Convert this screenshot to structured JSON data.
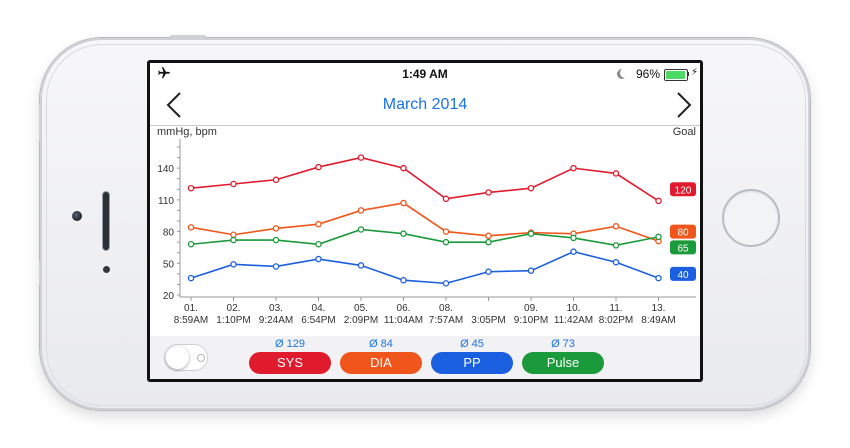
{
  "status": {
    "time": "1:49 AM",
    "battery_percent": "96%",
    "battery_level": 0.96,
    "left_icon": "airplane-icon",
    "right_icons": [
      "moon-icon",
      "battery-icon",
      "charging-bolt-icon"
    ]
  },
  "nav": {
    "title": "March 2014",
    "prev_icon": "chevron-left-icon",
    "next_icon": "chevron-right-icon"
  },
  "chart_data": {
    "type": "line",
    "ylabel": "mmHg, bpm",
    "goal_label": "Goal",
    "ylim": [
      20,
      160
    ],
    "yticks": [
      20,
      50,
      80,
      110,
      140
    ],
    "categories": [
      {
        "day": "01.",
        "time": "8:59AM"
      },
      {
        "day": "02.",
        "time": "1:10PM"
      },
      {
        "day": "03.",
        "time": "9:24AM"
      },
      {
        "day": "04.",
        "time": "6:54PM"
      },
      {
        "day": "05.",
        "time": "2:09PM"
      },
      {
        "day": "06.",
        "time": "11:04AM"
      },
      {
        "day": "08.",
        "time": "7:57AM"
      },
      {
        "day": "",
        "time": "3:05PM"
      },
      {
        "day": "09.",
        "time": "9:10PM"
      },
      {
        "day": "10.",
        "time": "11:42AM"
      },
      {
        "day": "11.",
        "time": "8:02PM"
      },
      {
        "day": "13.",
        "time": "8:49AM"
      }
    ],
    "series": [
      {
        "key": "sys",
        "color": "#e01b2e",
        "goal": "120",
        "values": [
          121,
          125,
          129,
          141,
          150,
          140,
          111,
          117,
          121,
          140,
          135,
          109
        ]
      },
      {
        "key": "dia",
        "color": "#f0561c",
        "goal": "80",
        "values": [
          84,
          77,
          83,
          87,
          100,
          107,
          80,
          76,
          79,
          78,
          85,
          71
        ]
      },
      {
        "key": "pp",
        "color": "#1a5fe0",
        "goal": "40",
        "values": [
          36,
          49,
          47,
          54,
          48,
          34,
          31,
          42,
          43,
          61,
          51,
          36
        ]
      },
      {
        "key": "pulse",
        "color": "#1a9a3a",
        "goal": "65",
        "values": [
          68,
          72,
          72,
          68,
          82,
          78,
          70,
          70,
          78,
          74,
          67,
          75
        ]
      }
    ]
  },
  "summary": {
    "sys": {
      "avg": "Ø 129",
      "label": "SYS",
      "color": "#e01b2e"
    },
    "dia": {
      "avg": "Ø 84",
      "label": "DIA",
      "color": "#f0561c"
    },
    "pp": {
      "avg": "Ø 45",
      "label": "PP",
      "color": "#1a5fe0"
    },
    "pulse": {
      "avg": "Ø 73",
      "label": "Pulse",
      "color": "#1a9a3a"
    }
  }
}
